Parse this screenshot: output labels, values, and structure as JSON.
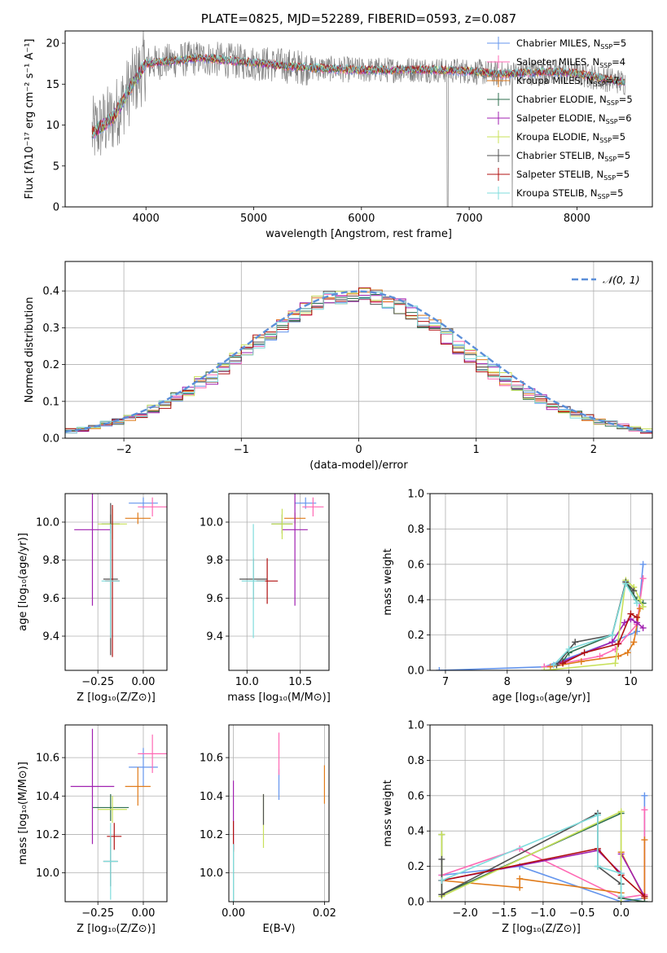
{
  "colors": {
    "Chabrier MILES": "#6495ed",
    "Salpeter MILES": "#ff69b4",
    "Kroupa MILES": "#e07b1a",
    "Chabrier ELODIE": "#2f6f4f",
    "Salpeter ELODIE": "#a020b0",
    "Kroupa ELODIE": "#c8e05a",
    "Chabrier STELIB": "#505050",
    "Salpeter STELIB": "#b01010",
    "Kroupa STELIB": "#7fdcdc",
    "data": "#808080",
    "normal": "#5b8fd9"
  },
  "chart_data": [
    {
      "type": "line",
      "title": "PLATE=0825, MJD=52289, FIBERID=0593, z=0.087",
      "xlabel": "wavelength [Angstrom, rest frame]",
      "ylabel": "Flux [fλ10⁻¹⁷ erg cm⁻² s⁻¹ A⁻¹]",
      "xlim": [
        3250,
        8700
      ],
      "ylim": [
        0,
        21.5
      ],
      "xticks": [
        4000,
        5000,
        6000,
        7000,
        8000
      ],
      "yticks": [
        0,
        5,
        10,
        15,
        20
      ],
      "grid": false,
      "legend_position": "top-right",
      "legend": [
        {
          "model": "Chabrier MILES",
          "n_ssp": "5"
        },
        {
          "model": "Salpeter MILES",
          "n_ssp": "4"
        },
        {
          "model": "Kroupa MILES",
          "n_ssp": "7"
        },
        {
          "model": "Chabrier ELODIE",
          "n_ssp": "5"
        },
        {
          "model": "Salpeter ELODIE",
          "n_ssp": "6"
        },
        {
          "model": "Kroupa ELODIE",
          "n_ssp": "5"
        },
        {
          "model": "Chabrier STELIB",
          "n_ssp": "5"
        },
        {
          "model": "Salpeter STELIB",
          "n_ssp": "5"
        },
        {
          "model": "Kroupa STELIB",
          "n_ssp": "5"
        }
      ],
      "continuum": {
        "x": [
          3500,
          3700,
          3900,
          4000,
          4200,
          4500,
          5000,
          5500,
          6000,
          6500,
          7000,
          7300,
          7500,
          7800,
          8000,
          8200,
          8450
        ],
        "y": [
          9,
          11,
          15.5,
          17.5,
          17.8,
          18.2,
          17.6,
          17.0,
          16.7,
          16.8,
          16.6,
          16.2,
          16.4,
          16.5,
          16.3,
          15.8,
          15.2
        ]
      }
    },
    {
      "type": "histogram",
      "xlabel": "(data-model)/error",
      "ylabel": "Normed distribution",
      "xlim": [
        -2.5,
        2.5
      ],
      "ylim": [
        0,
        0.48
      ],
      "xticks": [
        -2,
        -1,
        0,
        1,
        2
      ],
      "yticks": [
        0.0,
        0.1,
        0.2,
        0.3,
        0.4
      ],
      "grid": true,
      "legend": "𝒩(0, 1)",
      "legend_position": "top-right",
      "bin_edges": [
        -2.6,
        -2.5,
        -2.4,
        -2.3,
        -2.2,
        -2.1,
        -2.0,
        -1.9,
        -1.8,
        -1.7,
        -1.6,
        -1.5,
        -1.4,
        -1.3,
        -1.2,
        -1.1,
        -1.0,
        -0.9,
        -0.8,
        -0.7,
        -0.6,
        -0.5,
        -0.4,
        -0.3,
        -0.2,
        -0.1,
        0.0,
        0.1,
        0.2,
        0.3,
        0.4,
        0.5,
        0.6,
        0.7,
        0.8,
        0.9,
        1.0,
        1.1,
        1.2,
        1.3,
        1.4,
        1.5,
        1.6,
        1.7,
        1.8,
        1.9,
        2.0,
        2.1,
        2.2,
        2.3,
        2.4,
        2.5
      ],
      "base_density": [
        0.02,
        0.02,
        0.025,
        0.03,
        0.04,
        0.045,
        0.055,
        0.065,
        0.08,
        0.09,
        0.11,
        0.13,
        0.15,
        0.165,
        0.19,
        0.21,
        0.235,
        0.26,
        0.285,
        0.31,
        0.33,
        0.35,
        0.37,
        0.38,
        0.385,
        0.39,
        0.39,
        0.385,
        0.375,
        0.36,
        0.345,
        0.32,
        0.3,
        0.275,
        0.25,
        0.225,
        0.2,
        0.18,
        0.16,
        0.14,
        0.12,
        0.105,
        0.09,
        0.075,
        0.065,
        0.055,
        0.045,
        0.04,
        0.032,
        0.025,
        0.02
      ]
    },
    {
      "type": "scatter",
      "xlabel": "Z [log₁₀(Z/Z⊙)]",
      "ylabel": "age  [log₁₀(age/yr)]",
      "xlim": [
        -0.43,
        0.13
      ],
      "ylim": [
        9.22,
        10.15
      ],
      "xticks": [
        -0.25,
        0.0
      ],
      "xticklabels": [
        "−0.25",
        "0.00"
      ],
      "yticks": [
        9.4,
        9.6,
        9.8,
        10.0
      ],
      "grid": true,
      "points": [
        {
          "model": "Chabrier MILES",
          "x": 0.0,
          "xerr": 0.08,
          "y": 10.1,
          "yerr": 0.03
        },
        {
          "model": "Salpeter MILES",
          "x": 0.05,
          "xerr": 0.08,
          "y": 10.08,
          "yerr": 0.05
        },
        {
          "model": "Kroupa MILES",
          "x": -0.03,
          "xerr": 0.07,
          "y": 10.02,
          "yerr": 0.03
        },
        {
          "model": "Chabrier ELODIE",
          "x": -0.18,
          "xerr": 0.05,
          "y": 9.99,
          "yerr": 0.05
        },
        {
          "model": "Salpeter ELODIE",
          "x": -0.28,
          "xerr": 0.1,
          "y": 9.96,
          "yerr": 0.4
        },
        {
          "model": "Kroupa ELODIE",
          "x": -0.17,
          "xerr": 0.08,
          "y": 9.99,
          "yerr": 0.08
        },
        {
          "model": "Chabrier STELIB",
          "x": -0.18,
          "xerr": 0.04,
          "y": 9.7,
          "yerr": 0.4
        },
        {
          "model": "Salpeter STELIB",
          "x": -0.17,
          "xerr": 0.04,
          "y": 9.69,
          "yerr": 0.4
        },
        {
          "model": "Kroupa STELIB",
          "x": -0.18,
          "xerr": 0.05,
          "y": 9.69,
          "yerr": 0.3
        }
      ]
    },
    {
      "type": "scatter",
      "xlabel": "mass [log₁₀(M/M⊙)]",
      "ylabel": "",
      "xlim": [
        9.83,
        10.77
      ],
      "ylim": [
        9.22,
        10.15
      ],
      "xticks": [
        10.0,
        10.5
      ],
      "xticklabels": [
        "10.0",
        "10.5"
      ],
      "yticks": [
        9.4,
        9.6,
        9.8,
        10.0
      ],
      "grid": true,
      "points": [
        {
          "model": "Chabrier MILES",
          "x": 10.55,
          "xerr": 0.1,
          "y": 10.1,
          "yerr": 0.03
        },
        {
          "model": "Salpeter MILES",
          "x": 10.62,
          "xerr": 0.1,
          "y": 10.08,
          "yerr": 0.05
        },
        {
          "model": "Kroupa MILES",
          "x": 10.45,
          "xerr": 0.1,
          "y": 10.02,
          "yerr": 0.03
        },
        {
          "model": "Chabrier ELODIE",
          "x": 10.33,
          "xerr": 0.1,
          "y": 9.99,
          "yerr": 0.05
        },
        {
          "model": "Salpeter ELODIE",
          "x": 10.45,
          "xerr": 0.12,
          "y": 9.96,
          "yerr": 0.4
        },
        {
          "model": "Kroupa ELODIE",
          "x": 10.33,
          "xerr": 0.1,
          "y": 9.99,
          "yerr": 0.08
        },
        {
          "model": "Chabrier STELIB",
          "x": 10.06,
          "xerr": 0.13,
          "y": 9.7,
          "yerr": 0.11
        },
        {
          "model": "Salpeter STELIB",
          "x": 10.19,
          "xerr": 0.1,
          "y": 9.69,
          "yerr": 0.12
        },
        {
          "model": "Kroupa STELIB",
          "x": 10.06,
          "xerr": 0.11,
          "y": 9.69,
          "yerr": 0.3
        }
      ]
    },
    {
      "type": "line",
      "xlabel": "age  [log₁₀(age/yr)]",
      "ylabel": "mass weight",
      "xlim": [
        6.75,
        10.35
      ],
      "ylim": [
        0,
        1.0
      ],
      "xticks": [
        7,
        8,
        9,
        10
      ],
      "yticks": [
        0.0,
        0.2,
        0.4,
        0.6,
        0.8,
        1.0
      ],
      "grid": true,
      "series": [
        {
          "model": "Chabrier MILES",
          "x": [
            6.9,
            8.6,
            9.7,
            10.1,
            10.2
          ],
          "y": [
            0.0,
            0.02,
            0.16,
            0.22,
            0.6
          ]
        },
        {
          "model": "Salpeter MILES",
          "x": [
            8.6,
            9.5,
            9.75,
            10.1,
            10.2
          ],
          "y": [
            0.02,
            0.08,
            0.12,
            0.26,
            0.52
          ]
        },
        {
          "model": "Kroupa MILES",
          "x": [
            8.7,
            9.2,
            9.8,
            9.95,
            10.05,
            10.15
          ],
          "y": [
            0.02,
            0.05,
            0.08,
            0.1,
            0.16,
            0.35
          ]
        },
        {
          "model": "Chabrier ELODIE",
          "x": [
            8.9,
            9.0,
            9.7,
            9.92,
            10.1,
            10.2
          ],
          "y": [
            0.05,
            0.1,
            0.2,
            0.5,
            0.4,
            0.38
          ]
        },
        {
          "model": "Salpeter ELODIE",
          "x": [
            8.75,
            9.7,
            9.9,
            10.0,
            10.1,
            10.2
          ],
          "y": [
            0.03,
            0.16,
            0.27,
            0.29,
            0.27,
            0.24
          ]
        },
        {
          "model": "Kroupa ELODIE",
          "x": [
            8.6,
            9.75,
            9.92,
            10.05,
            10.15,
            10.2
          ],
          "y": [
            0.0,
            0.04,
            0.51,
            0.47,
            0.4,
            0.36
          ]
        },
        {
          "model": "Chabrier STELIB",
          "x": [
            8.8,
            9.1,
            9.7,
            9.92,
            10.05
          ],
          "y": [
            0.03,
            0.16,
            0.2,
            0.5,
            0.45
          ]
        },
        {
          "model": "Salpeter STELIB",
          "x": [
            8.9,
            9.25,
            9.8,
            10.0,
            10.1
          ],
          "y": [
            0.04,
            0.1,
            0.15,
            0.32,
            0.3
          ]
        },
        {
          "model": "Kroupa STELIB",
          "x": [
            8.75,
            9.0,
            9.7,
            9.92,
            10.1
          ],
          "y": [
            0.03,
            0.12,
            0.2,
            0.49,
            0.38
          ]
        }
      ]
    },
    {
      "type": "scatter",
      "xlabel": "Z [log₁₀(Z/Z⊙)]",
      "ylabel": "mass [log₁₀(M/M⊙)]",
      "xlim": [
        -0.43,
        0.13
      ],
      "ylim": [
        9.85,
        10.77
      ],
      "xticks": [
        -0.25,
        0.0
      ],
      "xticklabels": [
        "−0.25",
        "0.00"
      ],
      "yticks": [
        10.0,
        10.2,
        10.4,
        10.6
      ],
      "grid": true,
      "points": [
        {
          "model": "Chabrier MILES",
          "x": 0.0,
          "xerr": 0.08,
          "y": 10.55,
          "yerr": 0.1
        },
        {
          "model": "Salpeter MILES",
          "x": 0.05,
          "xerr": 0.08,
          "y": 10.62,
          "yerr": 0.1
        },
        {
          "model": "Kroupa MILES",
          "x": -0.03,
          "xerr": 0.07,
          "y": 10.45,
          "yerr": 0.1
        },
        {
          "model": "Chabrier ELODIE",
          "x": -0.18,
          "xerr": 0.1,
          "y": 10.34,
          "yerr": 0.07
        },
        {
          "model": "Salpeter ELODIE",
          "x": -0.28,
          "xerr": 0.12,
          "y": 10.45,
          "yerr": 0.3
        },
        {
          "model": "Kroupa ELODIE",
          "x": -0.17,
          "xerr": 0.08,
          "y": 10.33,
          "yerr": 0.07
        },
        {
          "model": "Chabrier STELIB",
          "x": -0.18,
          "xerr": 0.04,
          "y": 10.06,
          "yerr": 0.13
        },
        {
          "model": "Salpeter STELIB",
          "x": -0.16,
          "xerr": 0.04,
          "y": 10.19,
          "yerr": 0.07
        },
        {
          "model": "Kroupa STELIB",
          "x": -0.18,
          "xerr": 0.04,
          "y": 10.06,
          "yerr": 0.2
        }
      ]
    },
    {
      "type": "scatter",
      "xlabel": "E(B-V)",
      "ylabel": "",
      "xlim": [
        -0.001,
        0.021
      ],
      "ylim": [
        9.85,
        10.77
      ],
      "xticks": [
        0.0,
        0.02
      ],
      "xticklabels": [
        "0.00",
        "0.02"
      ],
      "yticks": [
        10.0,
        10.2,
        10.4,
        10.6
      ],
      "grid": true,
      "points": [
        {
          "model": "Chabrier MILES",
          "x": 0.01,
          "y": 10.46,
          "yerr": 0.08
        },
        {
          "model": "Salpeter MILES",
          "x": 0.01,
          "y": 10.62,
          "yerr": 0.11
        },
        {
          "model": "Kroupa MILES",
          "x": 0.02,
          "y": 10.46,
          "yerr": 0.1
        },
        {
          "model": "Chabrier ELODIE",
          "x": 0.0,
          "y": 10.0,
          "yerr": 0.15
        },
        {
          "model": "Salpeter ELODIE",
          "x": 0.0,
          "y": 10.3,
          "yerr": 0.18
        },
        {
          "model": "Kroupa ELODIE",
          "x": 0.0066,
          "y": 10.27,
          "yerr": 0.14
        },
        {
          "model": "Chabrier STELIB",
          "x": 0.0066,
          "y": 10.33,
          "yerr": 0.08
        },
        {
          "model": "Salpeter STELIB",
          "x": 0.0,
          "y": 10.19,
          "yerr": 0.08
        },
        {
          "model": "Kroupa STELIB",
          "x": 0.0,
          "y": 10.0,
          "yerr": 0.15
        }
      ]
    },
    {
      "type": "line",
      "xlabel": "Z [log₁₀(Z/Z⊙)]",
      "ylabel": "mass weight",
      "xlim": [
        -2.45,
        0.4
      ],
      "ylim": [
        0,
        1.0
      ],
      "xticks": [
        -2.0,
        -1.5,
        -1.0,
        -0.5,
        0.0
      ],
      "xticklabels": [
        "−2.0",
        "−1.5",
        "−1.0",
        "−0.5",
        "0.0"
      ],
      "yticks": [
        0.0,
        0.2,
        0.4,
        0.6,
        0.8,
        1.0
      ],
      "grid": true,
      "series": [
        {
          "model": "Chabrier MILES",
          "x": [
            -2.3,
            -1.3,
            0.0,
            0.3,
            0.3
          ],
          "y": [
            0.15,
            0.2,
            0.0,
            0.02,
            0.6
          ]
        },
        {
          "model": "Salpeter MILES",
          "x": [
            -2.3,
            -1.3,
            0.0,
            0.3,
            0.3
          ],
          "y": [
            0.15,
            0.3,
            0.02,
            0.04,
            0.52
          ]
        },
        {
          "model": "Kroupa MILES",
          "x": [
            -2.3,
            -1.3,
            -1.3,
            0.0,
            0.0,
            0.3,
            0.3
          ],
          "y": [
            0.12,
            0.08,
            0.13,
            0.05,
            0.28,
            0.02,
            0.35
          ]
        },
        {
          "model": "Chabrier ELODIE",
          "x": [
            -2.3,
            -2.3,
            0.0,
            0.0,
            0.3
          ],
          "y": [
            0.38,
            0.04,
            0.5,
            0.02,
            0.0
          ]
        },
        {
          "model": "Salpeter ELODIE",
          "x": [
            -2.3,
            -0.3,
            0.0,
            0.0,
            0.3
          ],
          "y": [
            0.12,
            0.29,
            0.16,
            0.27,
            0.03
          ]
        },
        {
          "model": "Kroupa ELODIE",
          "x": [
            -2.3,
            -2.3,
            0.0,
            0.0
          ],
          "y": [
            0.38,
            0.03,
            0.51,
            0.0
          ]
        },
        {
          "model": "Chabrier STELIB",
          "x": [
            -2.3,
            -2.3,
            -0.3,
            -0.3,
            0.0
          ],
          "y": [
            0.24,
            0.04,
            0.5,
            0.2,
            0.1
          ]
        },
        {
          "model": "Salpeter STELIB",
          "x": [
            -2.3,
            -0.3,
            0.0,
            0.3
          ],
          "y": [
            0.12,
            0.3,
            0.15,
            0.03
          ]
        },
        {
          "model": "Kroupa STELIB",
          "x": [
            -2.3,
            -0.3,
            -0.3,
            0.0,
            0.0
          ],
          "y": [
            0.12,
            0.49,
            0.2,
            0.16,
            0.03
          ]
        }
      ]
    }
  ]
}
